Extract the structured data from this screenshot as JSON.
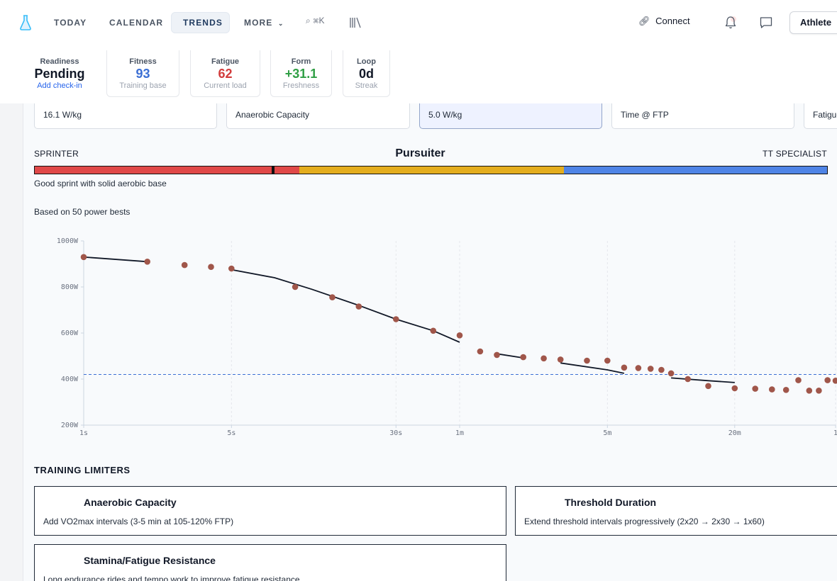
{
  "nav": {
    "items": [
      "TODAY",
      "CALENDAR",
      "TRENDS",
      "MORE"
    ],
    "active": "TRENDS",
    "search_shortcut": "⌘K",
    "connect_label": "Connect",
    "athlete_label": "Athlete"
  },
  "stats": [
    {
      "label": "Readiness",
      "value": "Pending",
      "sub": "Add check-in",
      "color": "#111827",
      "sub_color": "#2563eb"
    },
    {
      "label": "Fitness",
      "value": "93",
      "sub": "Training base",
      "color": "#3b6fd4",
      "sub_color": "#9ca3af"
    },
    {
      "label": "Fatigue",
      "value": "62",
      "sub": "Current load",
      "color": "#d23c3c",
      "sub_color": "#9ca3af"
    },
    {
      "label": "Form",
      "value": "+31.1",
      "sub": "Freshness",
      "color": "#2f9e44",
      "sub_color": "#9ca3af"
    },
    {
      "label": "Loop",
      "value": "0d",
      "sub": "Streak",
      "color": "#111827",
      "sub_color": "#9ca3af"
    }
  ],
  "metric_cards": [
    {
      "label": "16.1 W/kg",
      "selected": false
    },
    {
      "label": "Anaerobic Capacity",
      "selected": false
    },
    {
      "label": "5.0 W/kg",
      "selected": true
    },
    {
      "label": "Time @ FTP",
      "selected": false
    },
    {
      "label": "Fatigue",
      "selected": false
    }
  ],
  "phenotype": {
    "left": "SPRINTER",
    "center": "Pursuiter",
    "right": "TT SPECIALIST",
    "description": "Good sprint with solid aerobic base",
    "colors": {
      "sprinter": "#e04848",
      "pursuiter": "#e4ad1e",
      "tt": "#4f84e6"
    }
  },
  "based_on": "Based on 50 power bests",
  "chart_data": {
    "type": "scatter",
    "x_scale": "log",
    "y_ticks": [
      "1000W",
      "800W",
      "600W",
      "400W",
      "200W"
    ],
    "y_tick_values": [
      1000,
      800,
      600,
      400,
      200
    ],
    "x_ticks": [
      {
        "label": "1s",
        "seconds": 1
      },
      {
        "label": "5s",
        "seconds": 5
      },
      {
        "label": "30s",
        "seconds": 30
      },
      {
        "label": "1m",
        "seconds": 60
      },
      {
        "label": "5m",
        "seconds": 300
      },
      {
        "label": "20m",
        "seconds": 1200
      },
      {
        "label": "1",
        "seconds": 3600
      }
    ],
    "ylim": [
      200,
      1000
    ],
    "xlim_seconds": [
      1,
      3600
    ],
    "threshold_watts": 420,
    "point_color": "#a0564a",
    "points": [
      [
        1,
        930
      ],
      [
        2,
        910
      ],
      [
        3,
        895
      ],
      [
        4,
        887
      ],
      [
        5,
        880
      ],
      [
        10,
        800
      ],
      [
        15,
        755
      ],
      [
        20,
        715
      ],
      [
        30,
        660
      ],
      [
        45,
        610
      ],
      [
        60,
        590
      ],
      [
        75,
        520
      ],
      [
        90,
        505
      ],
      [
        120,
        495
      ],
      [
        150,
        490
      ],
      [
        180,
        485
      ],
      [
        240,
        480
      ],
      [
        300,
        480
      ],
      [
        360,
        450
      ],
      [
        420,
        448
      ],
      [
        480,
        445
      ],
      [
        540,
        440
      ],
      [
        600,
        425
      ],
      [
        720,
        400
      ],
      [
        900,
        370
      ],
      [
        1200,
        360
      ],
      [
        1500,
        358
      ],
      [
        1800,
        355
      ],
      [
        2100,
        353
      ],
      [
        2400,
        395
      ],
      [
        2700,
        350
      ],
      [
        3000,
        350
      ],
      [
        3300,
        395
      ],
      [
        3600,
        393
      ]
    ],
    "fit_segments": [
      [
        [
          1,
          930
        ],
        [
          2,
          910
        ]
      ],
      [
        [
          5,
          875
        ],
        [
          8,
          840
        ],
        [
          12,
          790
        ],
        [
          20,
          720
        ],
        [
          30,
          660
        ],
        [
          45,
          610
        ],
        [
          60,
          560
        ]
      ],
      [
        [
          90,
          510
        ],
        [
          120,
          492
        ]
      ],
      [
        [
          180,
          470
        ],
        [
          300,
          440
        ],
        [
          360,
          425
        ]
      ],
      [
        [
          600,
          405
        ],
        [
          900,
          393
        ],
        [
          1200,
          385
        ]
      ]
    ]
  },
  "limiters": {
    "title": "TRAINING LIMITERS",
    "items": [
      {
        "title": "Anaerobic Capacity",
        "desc": "Add VO2max intervals (3-5 min at 105-120% FTP)"
      },
      {
        "title": "Threshold Duration",
        "desc": "Extend threshold intervals progressively (2x20 → 2x30 → 1x60)"
      },
      {
        "title": "Stamina/Fatigue Resistance",
        "desc": "Long endurance rides and tempo work to improve fatigue resistance"
      }
    ]
  }
}
